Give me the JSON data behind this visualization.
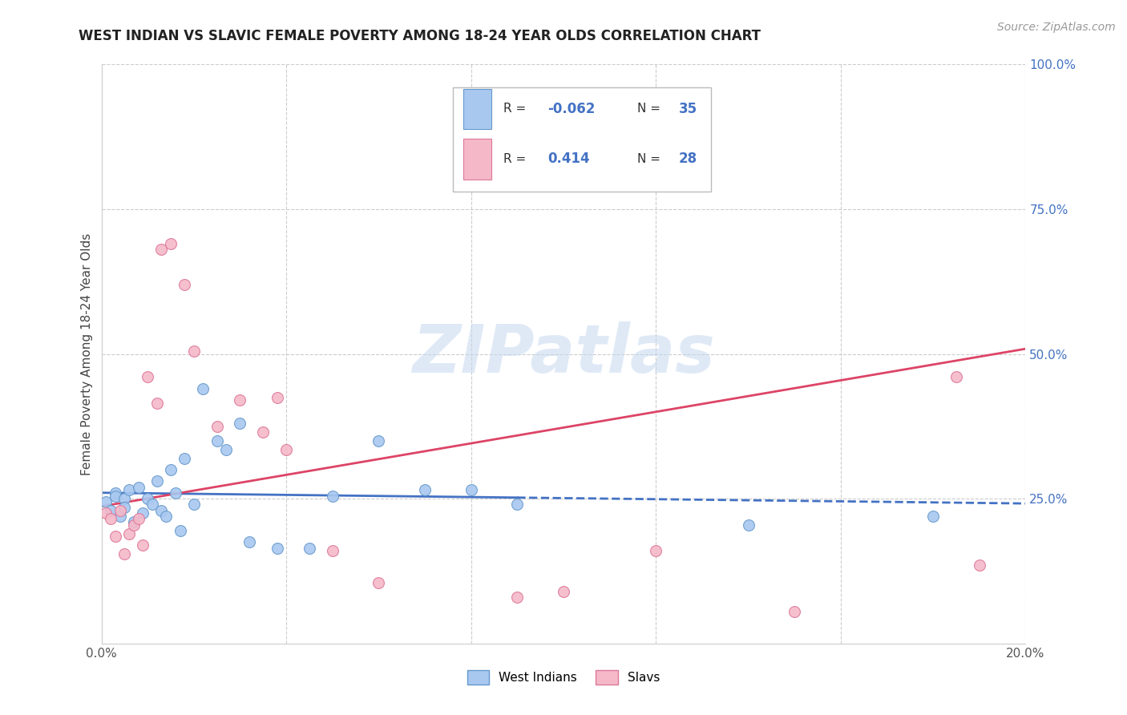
{
  "title": "WEST INDIAN VS SLAVIC FEMALE POVERTY AMONG 18-24 YEAR OLDS CORRELATION CHART",
  "source": "Source: ZipAtlas.com",
  "ylabel": "Female Poverty Among 18-24 Year Olds",
  "xlim": [
    0.0,
    0.2
  ],
  "ylim": [
    0.0,
    1.0
  ],
  "wi_x": [
    0.001,
    0.002,
    0.003,
    0.003,
    0.004,
    0.005,
    0.005,
    0.006,
    0.007,
    0.008,
    0.009,
    0.01,
    0.011,
    0.012,
    0.013,
    0.014,
    0.015,
    0.016,
    0.017,
    0.018,
    0.02,
    0.022,
    0.025,
    0.027,
    0.03,
    0.032,
    0.038,
    0.045,
    0.05,
    0.06,
    0.07,
    0.08,
    0.09,
    0.14,
    0.18
  ],
  "wi_y": [
    0.245,
    0.23,
    0.26,
    0.255,
    0.22,
    0.25,
    0.235,
    0.265,
    0.21,
    0.27,
    0.225,
    0.25,
    0.24,
    0.28,
    0.23,
    0.22,
    0.3,
    0.26,
    0.195,
    0.32,
    0.24,
    0.44,
    0.35,
    0.335,
    0.38,
    0.175,
    0.165,
    0.165,
    0.255,
    0.35,
    0.265,
    0.265,
    0.24,
    0.205,
    0.22
  ],
  "slavs_x": [
    0.001,
    0.002,
    0.003,
    0.004,
    0.005,
    0.006,
    0.007,
    0.008,
    0.009,
    0.01,
    0.012,
    0.013,
    0.015,
    0.018,
    0.02,
    0.025,
    0.03,
    0.035,
    0.038,
    0.04,
    0.05,
    0.06,
    0.09,
    0.1,
    0.12,
    0.15,
    0.185,
    0.19
  ],
  "slavs_y": [
    0.225,
    0.215,
    0.185,
    0.23,
    0.155,
    0.19,
    0.205,
    0.215,
    0.17,
    0.46,
    0.415,
    0.68,
    0.69,
    0.62,
    0.505,
    0.375,
    0.42,
    0.365,
    0.425,
    0.335,
    0.16,
    0.105,
    0.08,
    0.09,
    0.16,
    0.055,
    0.46,
    0.135
  ],
  "wi_color": "#a8c8f0",
  "wi_edge_color": "#6699cc",
  "slavs_color": "#f5b8c8",
  "slavs_edge_color": "#dd7799",
  "wi_line_color": "#4472c4",
  "slavs_line_color": "#dd4466",
  "wi_R": -0.062,
  "wi_N": 35,
  "slavs_R": 0.414,
  "slavs_N": 28,
  "watermark": "ZIPatlas",
  "legend_label_wi": "West Indians",
  "legend_label_slavs": "Slavs",
  "background_color": "#ffffff",
  "grid_color": "#cccccc",
  "title_color": "#222222",
  "axis_label_color": "#444444",
  "right_axis_color": "#4472c4",
  "marker_size": 100
}
